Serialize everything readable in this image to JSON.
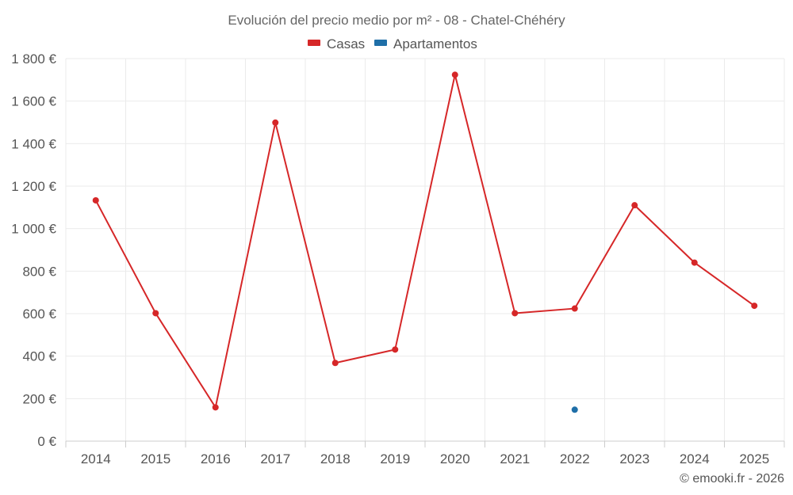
{
  "chart_data": {
    "type": "line",
    "title": "Evolución del precio medio por m² - 08 - Chatel-Chéhéry",
    "xlabel": "",
    "ylabel": "",
    "categories": [
      "2014",
      "2015",
      "2016",
      "2017",
      "2018",
      "2019",
      "2020",
      "2021",
      "2022",
      "2023",
      "2024",
      "2025"
    ],
    "ylim": [
      0,
      1800
    ],
    "yticks": [
      0,
      200,
      400,
      600,
      800,
      1000,
      1200,
      1400,
      1600,
      1800
    ],
    "ytick_labels": [
      "0 €",
      "200 €",
      "400 €",
      "600 €",
      "800 €",
      "1 000 €",
      "1 200 €",
      "1 400 €",
      "1 600 €",
      "1 800 €"
    ],
    "grid": true,
    "legend_position": "top-center",
    "series": [
      {
        "name": "Casas",
        "color": "#d62728",
        "values": [
          1133,
          602,
          159,
          1499,
          368,
          431,
          1724,
          602,
          624,
          1110,
          840,
          637
        ]
      },
      {
        "name": "Apartamentos",
        "color": "#1f6fa8",
        "values": [
          null,
          null,
          null,
          null,
          null,
          null,
          null,
          null,
          148,
          null,
          null,
          null
        ]
      }
    ]
  },
  "credit": "© emooki.fr - 2026",
  "colors": {
    "grid": "#ebebeb",
    "axis": "#cccccc",
    "text": "#555555"
  }
}
